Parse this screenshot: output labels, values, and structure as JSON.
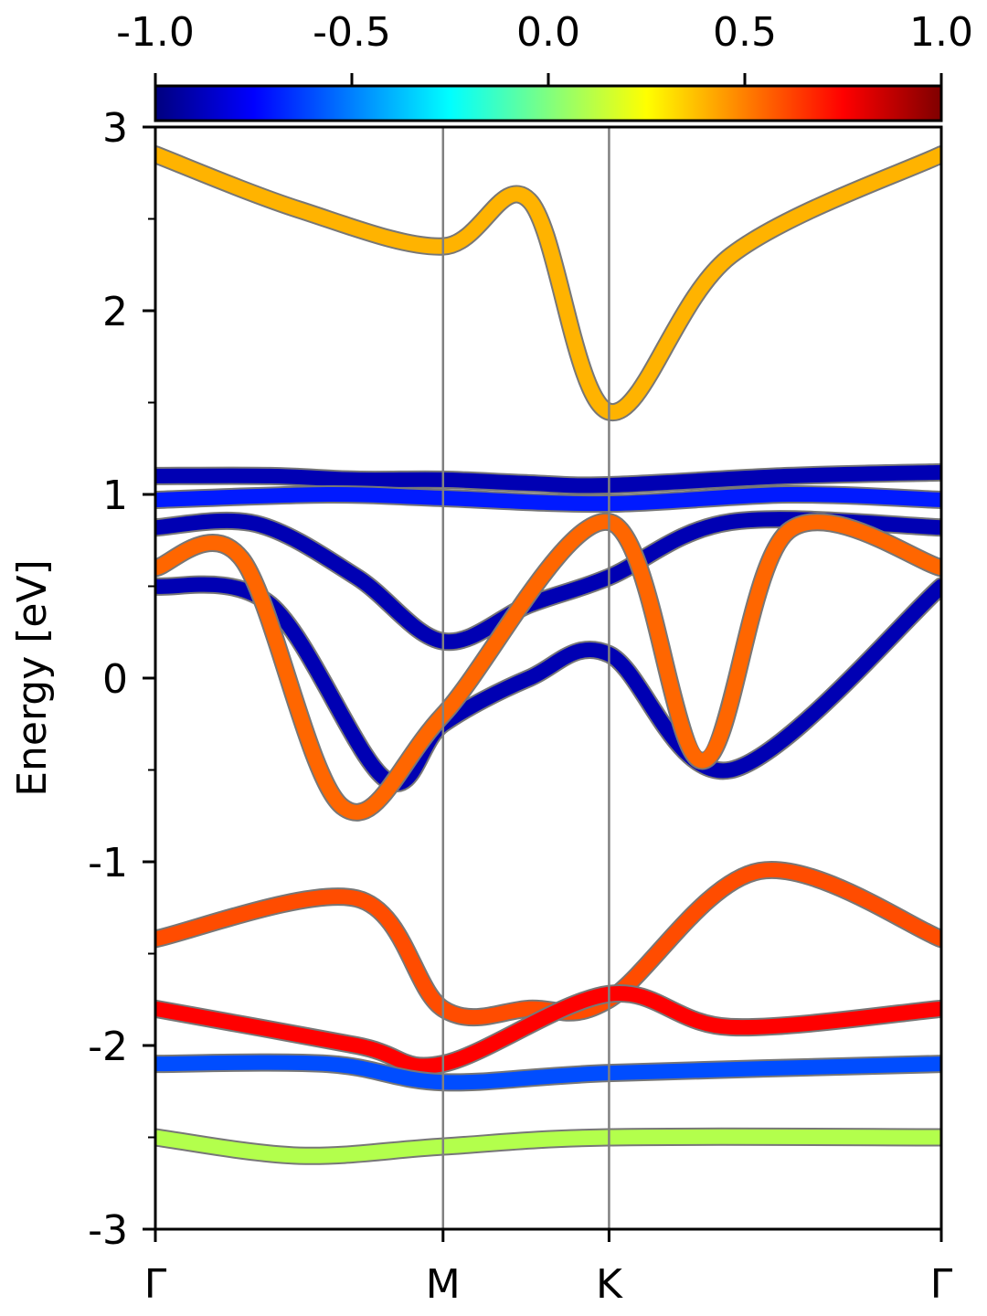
{
  "chart_data": {
    "type": "line",
    "title": "",
    "xlabel": "",
    "ylabel": "Energy [eV]",
    "ylim": [
      -3,
      3
    ],
    "yticks": [
      "3",
      "2",
      "1",
      "0",
      "-1",
      "-2",
      "-3"
    ],
    "ytick_values": [
      3,
      2,
      1,
      0,
      -1,
      -2,
      -3
    ],
    "kpath": [
      {
        "label": "Γ",
        "k": 0.0
      },
      {
        "label": "M",
        "k": 1.0
      },
      {
        "label": "K",
        "k": 1.577
      },
      {
        "label": "Γ",
        "k": 2.732
      }
    ],
    "colorbar": {
      "colormap": "jet",
      "range": [
        -1.0,
        1.0
      ],
      "tick_labels": [
        "-1.0",
        "-0.5",
        "0.0",
        "0.5",
        "1.0"
      ],
      "tick_values": [
        -1.0,
        -0.5,
        0.0,
        0.5,
        1.0
      ]
    },
    "series": [
      {
        "values_k": [
          0,
          0.5,
          1.0,
          1.3,
          1.577,
          2.0,
          2.732
        ],
        "energy": [
          2.85,
          2.55,
          2.35,
          2.6,
          1.45,
          2.3,
          2.85
        ],
        "projection": 0.4
      },
      {
        "values_k": [
          0,
          0.4,
          0.7,
          1.0,
          1.3,
          1.577,
          2.2,
          2.732
        ],
        "energy": [
          1.1,
          1.1,
          1.08,
          1.08,
          1.06,
          1.05,
          1.1,
          1.12
        ],
        "projection": -0.9
      },
      {
        "values_k": [
          0,
          0.6,
          1.0,
          1.577,
          2.2,
          2.732
        ],
        "energy": [
          0.97,
          1.0,
          0.98,
          0.95,
          1.0,
          0.97
        ],
        "projection": -0.7
      },
      {
        "values_k": [
          0,
          0.35,
          0.7,
          1.0,
          1.3,
          1.577,
          2.0,
          2.732
        ],
        "energy": [
          0.82,
          0.84,
          0.55,
          0.2,
          0.4,
          0.55,
          0.85,
          0.82
        ],
        "projection": -0.9
      },
      {
        "values_k": [
          0,
          0.4,
          0.8,
          1.0,
          1.3,
          1.577,
          2.0,
          2.732
        ],
        "energy": [
          0.5,
          0.4,
          -0.55,
          -0.25,
          0.0,
          0.13,
          -0.5,
          0.5
        ],
        "projection": -0.9
      },
      {
        "values_k": [
          0,
          0.3,
          0.65,
          1.0,
          1.577,
          1.9,
          2.2,
          2.732
        ],
        "energy": [
          0.6,
          0.65,
          -0.7,
          -0.2,
          0.85,
          -0.45,
          0.8,
          0.6
        ],
        "projection": 0.55
      },
      {
        "values_k": [
          0,
          0.7,
          1.0,
          1.3,
          1.577,
          2.1,
          2.732
        ],
        "energy": [
          -1.42,
          -1.2,
          -1.8,
          -1.8,
          -1.75,
          -1.05,
          -1.42
        ],
        "projection": 0.6
      },
      {
        "values_k": [
          0,
          0.7,
          1.0,
          1.577,
          2.0,
          2.732
        ],
        "energy": [
          -1.8,
          -2.0,
          -2.1,
          -1.72,
          -1.9,
          -1.8
        ],
        "projection": 0.75
      },
      {
        "values_k": [
          0,
          0.6,
          1.0,
          1.577,
          2.732
        ],
        "energy": [
          -2.1,
          -2.1,
          -2.2,
          -2.15,
          -2.1
        ],
        "projection": -0.6
      },
      {
        "values_k": [
          0,
          0.5,
          1.0,
          1.577,
          2.732
        ],
        "energy": [
          -2.5,
          -2.6,
          -2.55,
          -2.5,
          -2.5
        ],
        "projection": 0.1
      }
    ]
  }
}
